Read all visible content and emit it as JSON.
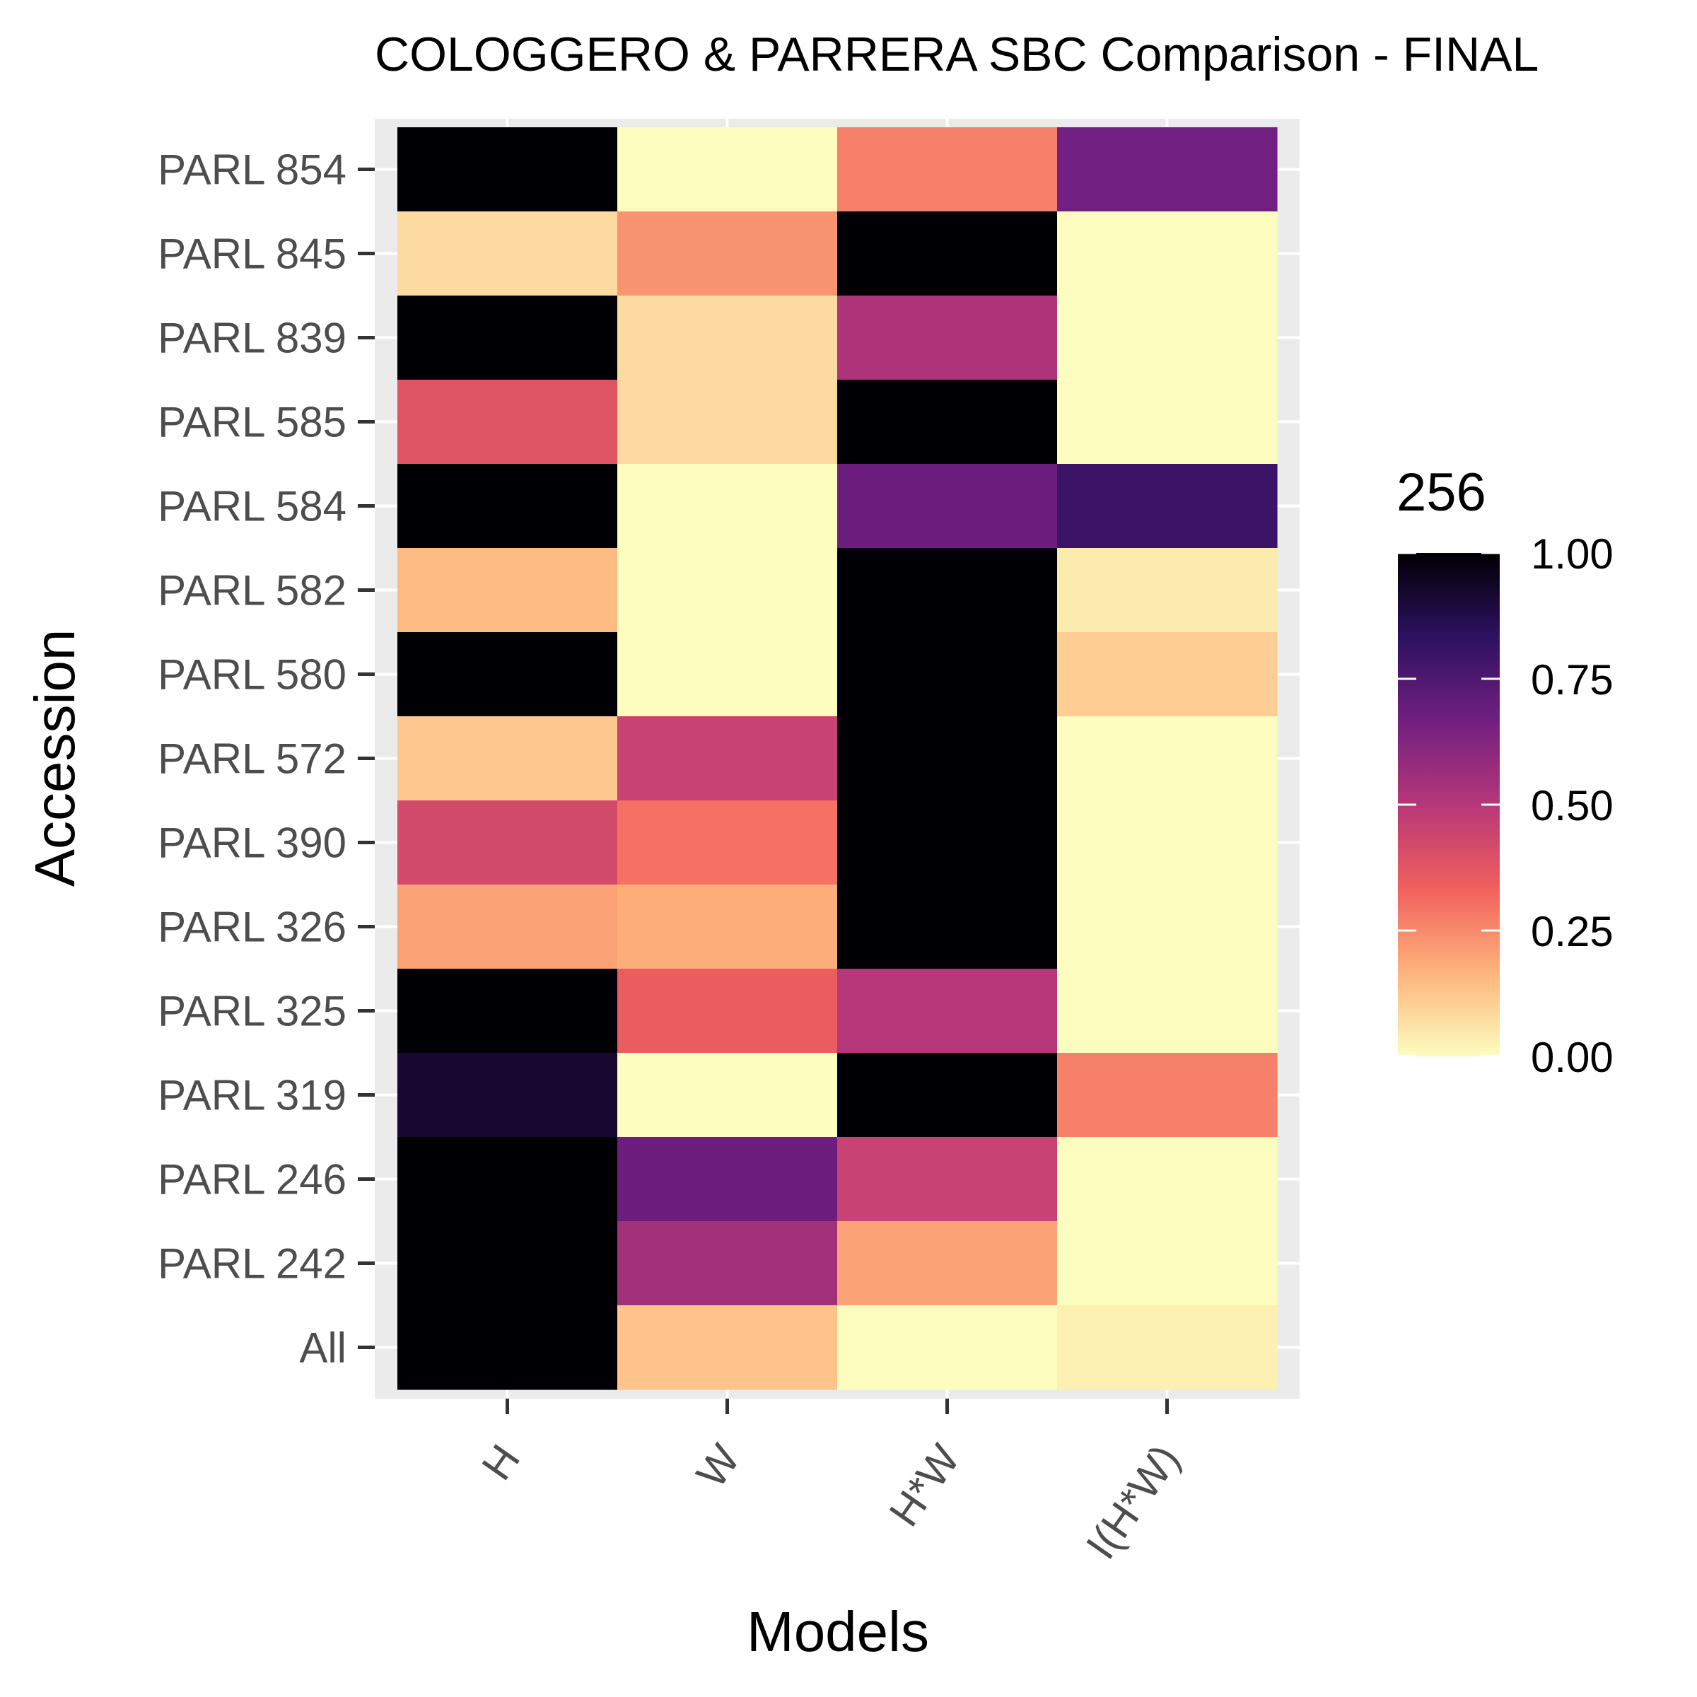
{
  "chart_data": {
    "type": "heatmap",
    "title": "COLOGGERO & PARRERA SBC Comparison - FINAL",
    "xlabel": "Models",
    "ylabel": "Accession",
    "x_categories": [
      "H",
      "W",
      "H*W",
      "I(H*W)"
    ],
    "y_categories": [
      "PARL 854",
      "PARL 845",
      "PARL 839",
      "PARL 585",
      "PARL 584",
      "PARL 582",
      "PARL 580",
      "PARL 572",
      "PARL 390",
      "PARL 326",
      "PARL 325",
      "PARL 319",
      "PARL 246",
      "PARL 242",
      "All"
    ],
    "values": [
      [
        1.0,
        0.0,
        0.27,
        0.67
      ],
      [
        0.08,
        0.23,
        1.0,
        0.0
      ],
      [
        1.0,
        0.08,
        0.52,
        0.0
      ],
      [
        0.38,
        0.08,
        1.0,
        0.0
      ],
      [
        1.0,
        0.0,
        0.68,
        0.8
      ],
      [
        0.15,
        0.0,
        1.0,
        0.04
      ],
      [
        1.0,
        0.0,
        1.0,
        0.11
      ],
      [
        0.12,
        0.45,
        1.0,
        0.0
      ],
      [
        0.42,
        0.3,
        1.0,
        0.0
      ],
      [
        0.2,
        0.18,
        1.0,
        0.0
      ],
      [
        1.0,
        0.35,
        0.5,
        0.0
      ],
      [
        0.92,
        0.0,
        1.0,
        0.27
      ],
      [
        1.0,
        0.68,
        0.45,
        0.0
      ],
      [
        1.0,
        0.55,
        0.2,
        0.0
      ],
      [
        1.0,
        0.13,
        0.0,
        0.03
      ]
    ],
    "legend": {
      "title": "256",
      "placement": "right",
      "min": 0,
      "max": 1,
      "breaks": [
        "0.00",
        "0.25",
        "0.50",
        "0.75",
        "1.00"
      ],
      "palette": "magma-reversed"
    },
    "colors": {
      "panel_background": "#ebebeb",
      "grid": "#ffffff",
      "scale_stops": [
        "#fcfdbf",
        "#feb47c",
        "#f1605d",
        "#b63779",
        "#721f81",
        "#2d1160",
        "#000004"
      ]
    }
  }
}
